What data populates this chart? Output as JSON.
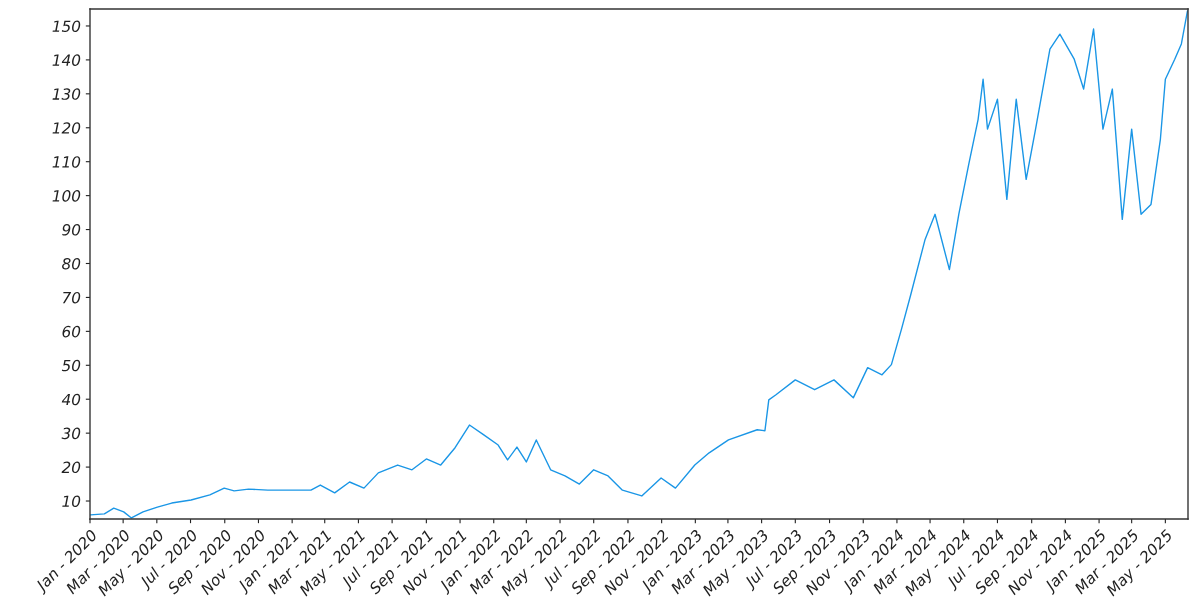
{
  "chart_data": {
    "type": "line",
    "x": [
      "2020-01-02",
      "2020-01-27",
      "2020-02-13",
      "2020-03-02",
      "2020-03-16",
      "2020-04-06",
      "2020-05-02",
      "2020-05-28",
      "2020-07-02",
      "2020-08-05",
      "2020-08-31",
      "2020-09-18",
      "2020-10-14",
      "2020-11-18",
      "2021-01-04",
      "2021-02-04",
      "2021-02-21",
      "2021-03-19",
      "2021-04-15",
      "2021-05-11",
      "2021-06-06",
      "2021-07-11",
      "2021-08-06",
      "2021-09-01",
      "2021-09-27",
      "2021-10-23",
      "2021-11-18",
      "2021-12-14",
      "2022-01-09",
      "2022-01-26",
      "2022-02-12",
      "2022-03-01",
      "2022-03-19",
      "2022-04-14",
      "2022-05-10",
      "2022-06-05",
      "2022-07-01",
      "2022-07-27",
      "2022-08-22",
      "2022-09-26",
      "2022-10-31",
      "2022-11-26",
      "2022-12-31",
      "2023-01-26",
      "2023-03-02",
      "2023-04-23",
      "2023-05-07",
      "2023-05-14",
      "2023-05-27",
      "2023-07-01",
      "2023-08-05",
      "2023-09-09",
      "2023-10-14",
      "2023-11-09",
      "2023-12-05",
      "2023-12-22",
      "2024-01-09",
      "2024-01-26",
      "2024-02-21",
      "2024-03-10",
      "2024-04-05",
      "2024-04-22",
      "2024-05-10",
      "2024-05-27",
      "2024-06-05",
      "2024-06-13",
      "2024-07-01",
      "2024-07-18",
      "2024-08-04",
      "2024-08-22",
      "2024-09-08",
      "2024-10-04",
      "2024-10-22",
      "2024-11-17",
      "2024-12-04",
      "2024-12-22",
      "2025-01-08",
      "2025-01-25",
      "2025-02-12",
      "2025-03-01",
      "2025-03-18",
      "2025-04-05",
      "2025-04-22",
      "2025-05-01",
      "2025-05-18",
      "2025-05-30",
      "2025-06-10"
    ],
    "series": [
      {
        "color": "#1a96e6",
        "values": [
          5.9,
          6.2,
          7.9,
          6.8,
          5.0,
          6.8,
          8.2,
          9.4,
          10.3,
          11.8,
          13.8,
          13.0,
          13.5,
          13.2,
          13.2,
          13.2,
          14.7,
          12.4,
          15.6,
          13.8,
          18.3,
          20.6,
          19.2,
          22.4,
          20.6,
          25.7,
          32.4,
          29.5,
          26.5,
          22.1,
          25.9,
          21.5,
          28.0,
          19.2,
          17.4,
          15.0,
          19.2,
          17.4,
          13.2,
          11.5,
          16.8,
          13.8,
          20.6,
          24.2,
          28.0,
          31.0,
          30.7,
          39.8,
          41.3,
          45.7,
          42.8,
          45.7,
          40.4,
          49.3,
          47.2,
          50.2,
          60.5,
          70.8,
          87.1,
          94.5,
          78.2,
          94.5,
          109.2,
          122.5,
          134.3,
          119.6,
          128.4,
          98.9,
          128.4,
          104.8,
          119.6,
          143.2,
          147.6,
          140.2,
          131.4,
          149.1,
          119.6,
          131.4,
          93.0,
          119.6,
          94.5,
          97.4,
          116.6,
          134.3,
          140.2,
          144.7,
          154.4
        ]
      }
    ],
    "xlim": [
      "2020-01-01",
      "2025-06-11"
    ],
    "ylim": [
      4.7,
      155
    ],
    "yticks": [
      10,
      20,
      30,
      40,
      50,
      60,
      70,
      80,
      90,
      100,
      110,
      120,
      130,
      140,
      150
    ],
    "xticks": [
      {
        "value": "2020-01",
        "label": "Jan - 2020"
      },
      {
        "value": "2020-03",
        "label": "Mar - 2020"
      },
      {
        "value": "2020-05",
        "label": "May - 2020"
      },
      {
        "value": "2020-07",
        "label": "Jul - 2020"
      },
      {
        "value": "2020-09",
        "label": "Sep - 2020"
      },
      {
        "value": "2020-11",
        "label": "Nov - 2020"
      },
      {
        "value": "2021-01",
        "label": "Jan - 2021"
      },
      {
        "value": "2021-03",
        "label": "Mar - 2021"
      },
      {
        "value": "2021-05",
        "label": "May - 2021"
      },
      {
        "value": "2021-07",
        "label": "Jul - 2021"
      },
      {
        "value": "2021-09",
        "label": "Sep - 2021"
      },
      {
        "value": "2021-11",
        "label": "Nov - 2021"
      },
      {
        "value": "2022-01",
        "label": "Jan - 2022"
      },
      {
        "value": "2022-03",
        "label": "Mar - 2022"
      },
      {
        "value": "2022-05",
        "label": "May - 2022"
      },
      {
        "value": "2022-07",
        "label": "Jul - 2022"
      },
      {
        "value": "2022-09",
        "label": "Sep - 2022"
      },
      {
        "value": "2022-11",
        "label": "Nov - 2022"
      },
      {
        "value": "2023-01",
        "label": "Jan - 2023"
      },
      {
        "value": "2023-03",
        "label": "Mar - 2023"
      },
      {
        "value": "2023-05",
        "label": "May - 2023"
      },
      {
        "value": "2023-07",
        "label": "Jul - 2023"
      },
      {
        "value": "2023-09",
        "label": "Sep - 2023"
      },
      {
        "value": "2023-11",
        "label": "Nov - 2023"
      },
      {
        "value": "2024-01",
        "label": "Jan - 2024"
      },
      {
        "value": "2024-03",
        "label": "Mar - 2024"
      },
      {
        "value": "2024-05",
        "label": "May - 2024"
      },
      {
        "value": "2024-07",
        "label": "Jul - 2024"
      },
      {
        "value": "2024-09",
        "label": "Sep - 2024"
      },
      {
        "value": "2024-11",
        "label": "Nov - 2024"
      },
      {
        "value": "2025-01",
        "label": "Jan - 2025"
      },
      {
        "value": "2025-03",
        "label": "Mar - 2025"
      },
      {
        "value": "2025-05",
        "label": "May - 2025"
      }
    ],
    "grid": false,
    "legend": false,
    "marker": "none",
    "line_style": "solid"
  }
}
